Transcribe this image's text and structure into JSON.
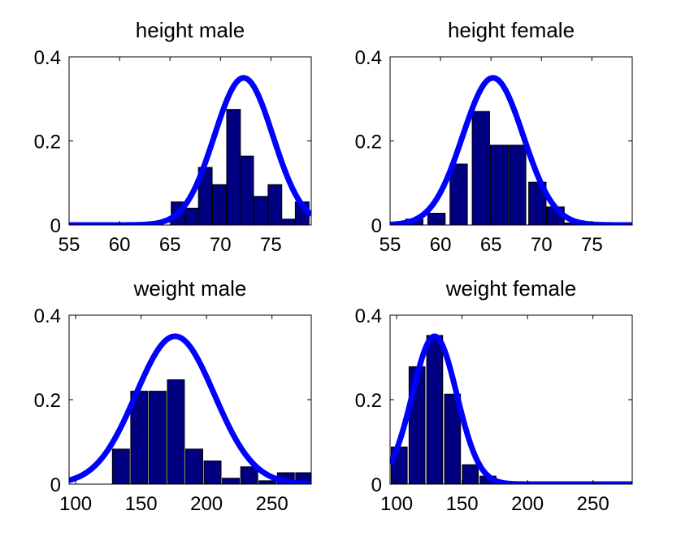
{
  "chart_data": [
    {
      "type": "bar",
      "title": "height  male",
      "xlim": [
        55,
        79
      ],
      "ylim": [
        0,
        0.4
      ],
      "xticks": [
        55,
        60,
        65,
        70,
        75
      ],
      "yticks": [
        0,
        0.2,
        0.4
      ],
      "ytick_labels": [
        "0",
        "0.2",
        "0.4"
      ],
      "bar_width": 1.36,
      "bar_color": "#000080",
      "bars": [
        {
          "x": 65.8,
          "value": 0.055
        },
        {
          "x": 67.2,
          "value": 0.04
        },
        {
          "x": 68.5,
          "value": 0.137
        },
        {
          "x": 69.9,
          "value": 0.096
        },
        {
          "x": 71.3,
          "value": 0.275
        },
        {
          "x": 72.6,
          "value": 0.164
        },
        {
          "x": 74.0,
          "value": 0.068
        },
        {
          "x": 75.4,
          "value": 0.096
        },
        {
          "x": 76.7,
          "value": 0.014
        },
        {
          "x": 78.1,
          "value": 0.055
        }
      ],
      "curve": {
        "type": "gaussian",
        "mean": 72.3,
        "sd": 2.9,
        "peak": 0.35,
        "color": "#0000ff"
      }
    },
    {
      "type": "bar",
      "title": "height  female",
      "xlim": [
        55,
        79
      ],
      "ylim": [
        0,
        0.4
      ],
      "xticks": [
        55,
        60,
        65,
        70,
        75
      ],
      "yticks": [
        0,
        0.2,
        0.4
      ],
      "ytick_labels": [
        "0",
        "0.2",
        "0.4"
      ],
      "bar_width": 1.72,
      "bar_color": "#000080",
      "bars": [
        {
          "x": 57.4,
          "value": 0.014
        },
        {
          "x": 59.6,
          "value": 0.028
        },
        {
          "x": 61.8,
          "value": 0.145
        },
        {
          "x": 64.0,
          "value": 0.27
        },
        {
          "x": 65.8,
          "value": 0.19
        },
        {
          "x": 67.6,
          "value": 0.19
        },
        {
          "x": 69.6,
          "value": 0.102
        },
        {
          "x": 71.4,
          "value": 0.043
        },
        {
          "x": 73.2,
          "value": 0.005
        }
      ],
      "curve": {
        "type": "gaussian",
        "mean": 65.2,
        "sd": 3.0,
        "peak": 0.35,
        "color": "#0000ff"
      }
    },
    {
      "type": "bar",
      "title": "weight male",
      "xlim": [
        95,
        280
      ],
      "ylim": [
        0,
        0.4
      ],
      "xticks": [
        100,
        150,
        200,
        250
      ],
      "yticks": [
        0,
        0.2,
        0.4
      ],
      "ytick_labels": [
        "0",
        "0.2",
        "0.4"
      ],
      "bar_width": 13.0,
      "bar_color": "#000080",
      "bars": [
        {
          "x": 134.6,
          "value": 0.083
        },
        {
          "x": 148.6,
          "value": 0.22
        },
        {
          "x": 162.6,
          "value": 0.22
        },
        {
          "x": 176.6,
          "value": 0.247
        },
        {
          "x": 190.6,
          "value": 0.083
        },
        {
          "x": 204.6,
          "value": 0.055
        },
        {
          "x": 218.6,
          "value": 0.014
        },
        {
          "x": 232.6,
          "value": 0.041
        },
        {
          "x": 246.6,
          "value": 0.008
        },
        {
          "x": 260.6,
          "value": 0.027
        },
        {
          "x": 274.6,
          "value": 0.027
        }
      ],
      "curve": {
        "type": "gaussian",
        "mean": 176.0,
        "sd": 30.0,
        "peak": 0.35,
        "color": "#0000ff"
      }
    },
    {
      "type": "bar",
      "title": "weight female",
      "xlim": [
        95,
        280
      ],
      "ylim": [
        0,
        0.4
      ],
      "xticks": [
        100,
        150,
        200,
        250
      ],
      "yticks": [
        0,
        0.2,
        0.4
      ],
      "ytick_labels": [
        "0",
        "0.2",
        "0.4"
      ],
      "bar_width": 12.2,
      "bar_color": "#000080",
      "bars": [
        {
          "x": 102.0,
          "value": 0.088
        },
        {
          "x": 115.6,
          "value": 0.278
        },
        {
          "x": 129.1,
          "value": 0.352
        },
        {
          "x": 142.7,
          "value": 0.213
        },
        {
          "x": 156.3,
          "value": 0.046
        },
        {
          "x": 169.8,
          "value": 0.019
        }
      ],
      "curve": {
        "type": "gaussian",
        "mean": 129.0,
        "sd": 17.0,
        "peak": 0.35,
        "color": "#0000ff"
      }
    }
  ]
}
